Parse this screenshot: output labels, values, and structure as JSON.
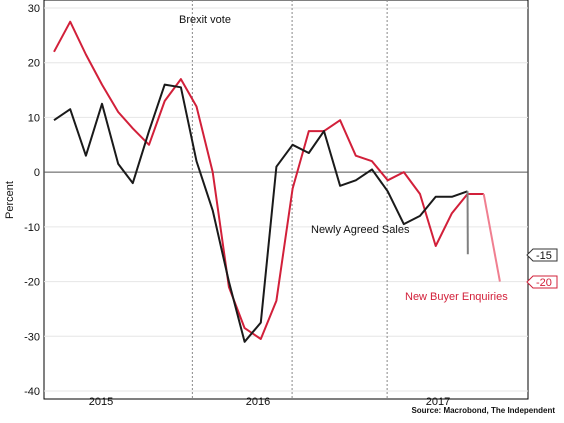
{
  "chart_data": {
    "type": "line",
    "ylabel": "Percent",
    "ylim": [
      -40,
      30
    ],
    "y_ticks": [
      30,
      20,
      10,
      0,
      -10,
      -20,
      -30,
      -40
    ],
    "year_labels": [
      "2015",
      "2016",
      "2017"
    ],
    "event_label": "Brexit vote",
    "source": "Source: Macrobond, The Independent",
    "grid": true,
    "series": [
      {
        "name": "New Buyer Enquiries",
        "color": "#d2203a",
        "end_value_label": "-20",
        "points": [
          [
            "2014-10",
            22
          ],
          [
            "2014-11",
            27.5
          ],
          [
            "2014-12",
            21.5
          ],
          [
            "2015-01",
            16
          ],
          [
            "2015-02",
            11
          ],
          [
            "2015-03",
            8
          ],
          [
            "2015-04",
            5
          ],
          [
            "2015-05",
            13
          ],
          [
            "2015-06",
            17
          ],
          [
            "2015-07",
            12
          ],
          [
            "2015-08",
            0
          ],
          [
            "2015-09",
            -21
          ],
          [
            "2015-10",
            -28.5
          ],
          [
            "2015-11",
            -30.5
          ],
          [
            "2015-12",
            -23.5
          ],
          [
            "2016-01",
            -3
          ],
          [
            "2016-02",
            7.5
          ],
          [
            "2016-03",
            7.5
          ],
          [
            "2016-04",
            9.5
          ],
          [
            "2016-05",
            3
          ],
          [
            "2016-06",
            2
          ],
          [
            "2016-07",
            -1.5
          ],
          [
            "2016-08",
            0
          ],
          [
            "2016-09",
            -4
          ],
          [
            "2016-10",
            -13.5
          ],
          [
            "2016-11",
            -7.5
          ],
          [
            "2016-12",
            -4
          ],
          [
            "2017-01",
            -4
          ],
          [
            "2017-02",
            -20
          ]
        ]
      },
      {
        "name": "Newly Agreed Sales",
        "color": "#1a1a1a",
        "end_value_label": "-15",
        "points": [
          [
            "2014-10",
            9.5
          ],
          [
            "2014-11",
            11.5
          ],
          [
            "2014-12",
            3
          ],
          [
            "2015-01",
            12.5
          ],
          [
            "2015-02",
            1.5
          ],
          [
            "2015-03",
            -2
          ],
          [
            "2015-04",
            7.5
          ],
          [
            "2015-05",
            16
          ],
          [
            "2015-06",
            15.5
          ],
          [
            "2015-07",
            2
          ],
          [
            "2015-08",
            -7
          ],
          [
            "2015-09",
            -20
          ],
          [
            "2015-10",
            -31
          ],
          [
            "2015-11",
            -27.5
          ],
          [
            "2015-12",
            1
          ],
          [
            "2016-01",
            5
          ],
          [
            "2016-02",
            3.5
          ],
          [
            "2016-03",
            7.5
          ],
          [
            "2016-04",
            -2.5
          ],
          [
            "2016-05",
            -1.5
          ],
          [
            "2016-06",
            0.5
          ],
          [
            "2016-07",
            -3.5
          ],
          [
            "2016-08",
            -9.5
          ],
          [
            "2016-09",
            -8
          ],
          [
            "2016-10",
            -4.5
          ],
          [
            "2016-11",
            -4.5
          ],
          [
            "2016-12",
            -3.5
          ],
          [
            "2017-01",
            -15
          ]
        ]
      }
    ]
  }
}
